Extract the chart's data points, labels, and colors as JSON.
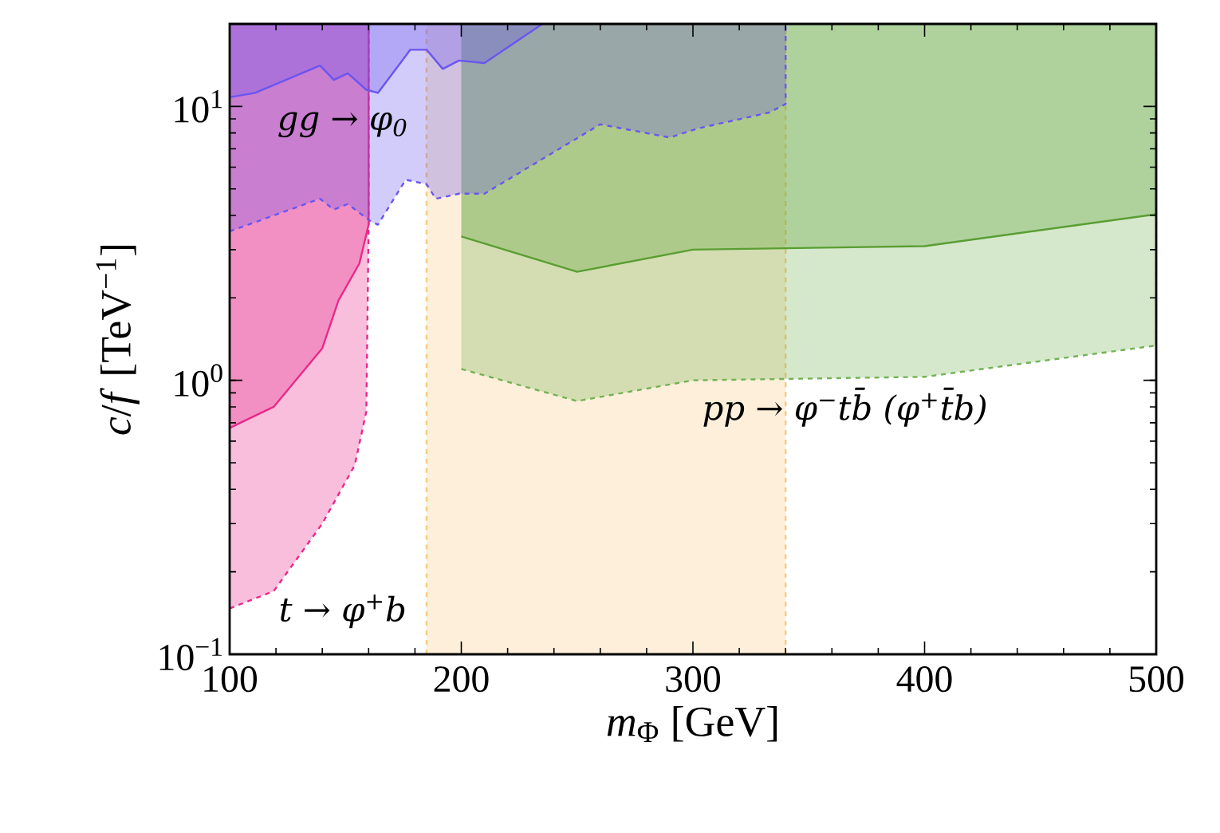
{
  "chart_data": {
    "type": "area",
    "xlabel": "*m*$_{Φ}$ [GeV]",
    "ylabel": "*c*/*f* [TeV$^{−1}$]",
    "log": "y",
    "xlim": [
      100,
      500
    ],
    "ylim": [
      0.1,
      20
    ],
    "xticks": [
      100,
      200,
      300,
      400,
      500
    ],
    "yticks": [
      {
        "value": 0.1,
        "label": "10$^{−1}$"
      },
      {
        "value": 1,
        "label": "10$^{0}$"
      },
      {
        "value": 10,
        "label": "10$^{1}$"
      }
    ],
    "bands": [
      {
        "axis": "x",
        "from": 185,
        "to": 340,
        "color": "#f8ca80"
      }
    ],
    "ref_lines": [
      {
        "axis": "x",
        "value": 185,
        "color": "#f8ca80",
        "line_style": "dashed"
      },
      {
        "axis": "x",
        "value": 340,
        "color": "#f8ca80",
        "line_style": "dashed"
      }
    ],
    "series": [
      {
        "color": "#e7298a",
        "line_style": "dashed",
        "x": [
          100,
          119,
          140,
          154,
          159,
          160
        ],
        "values": [
          0.147,
          0.17,
          0.3,
          0.49,
          0.77,
          3.7
        ]
      },
      {
        "color": "#e7298a",
        "line_style": "solid",
        "x": [
          100,
          119,
          140,
          147,
          156,
          160
        ],
        "values": [
          0.67,
          0.8,
          1.31,
          1.96,
          2.67,
          3.7
        ]
      },
      {
        "color": "#73b255",
        "line_style": "dashed",
        "x": [
          200,
          250,
          300,
          400,
          500
        ],
        "values": [
          1.1,
          0.84,
          1.0,
          1.03,
          1.34
        ]
      },
      {
        "color": "#5a9e32",
        "line_style": "solid",
        "x": [
          200,
          250,
          300,
          400,
          500
        ],
        "values": [
          3.35,
          2.49,
          3.0,
          3.09,
          4.04
        ]
      },
      {
        "color": "#6a55f0",
        "line_style": "dashed",
        "x": [
          100,
          108,
          139,
          145,
          151,
          161,
          164,
          176,
          185,
          189,
          199,
          210,
          260,
          290,
          302,
          333,
          340
        ],
        "values": [
          3.5,
          3.7,
          4.6,
          4.2,
          4.4,
          3.8,
          3.7,
          5.4,
          5.2,
          4.6,
          4.8,
          4.8,
          8.6,
          7.7,
          8.3,
          9.5,
          10.2
        ]
      },
      {
        "color": "#6a55f0",
        "line_style": "solid",
        "x": [
          100,
          111,
          139,
          145,
          151,
          159,
          164,
          178,
          185,
          192,
          199,
          210,
          235
        ],
        "values": [
          10.8,
          11.2,
          14.1,
          12.5,
          13.2,
          11.5,
          11.2,
          16.1,
          16.1,
          13.7,
          14.7,
          14.4,
          20
        ]
      }
    ],
    "annotations": [
      "gg → φ$_{0}$",
      "t → φ$^{+}$b",
      "pp → φ$^{−}$tb̄ (φ$^{+}$t̄b)"
    ]
  }
}
